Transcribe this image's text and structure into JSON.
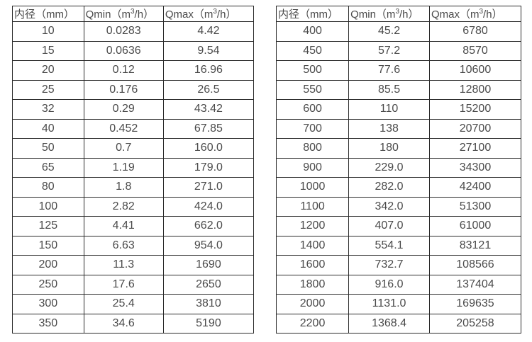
{
  "colors": {
    "background": "#ffffff",
    "border": "#2b2b2b",
    "text": "#4a4a4a"
  },
  "tables": [
    {
      "name": "small-diameters",
      "headers": [
        "内径（mm）",
        "Qmin（m³/h）",
        "Qmax（m³/h）"
      ],
      "rows": [
        [
          "10",
          "0.0283",
          "4.42"
        ],
        [
          "15",
          "0.0636",
          "9.54"
        ],
        [
          "20",
          "0.12",
          "16.96"
        ],
        [
          "25",
          "0.176",
          "26.5"
        ],
        [
          "32",
          "0.29",
          "43.42"
        ],
        [
          "40",
          "0.452",
          "67.85"
        ],
        [
          "50",
          "0.7",
          "160.0"
        ],
        [
          "65",
          "1.19",
          "179.0"
        ],
        [
          "80",
          "1.8",
          "271.0"
        ],
        [
          "100",
          "2.82",
          "424.0"
        ],
        [
          "125",
          "4.41",
          "662.0"
        ],
        [
          "150",
          "6.63",
          "954.0"
        ],
        [
          "200",
          "11.3",
          "1690"
        ],
        [
          "250",
          "17.6",
          "2650"
        ],
        [
          "300",
          "25.4",
          "3810"
        ],
        [
          "350",
          "34.6",
          "5190"
        ]
      ]
    },
    {
      "name": "large-diameters",
      "headers": [
        "内径（mm）",
        "Qmin（m³/h）",
        "Qmax（m³/h）"
      ],
      "rows": [
        [
          "400",
          "45.2",
          "6780"
        ],
        [
          "450",
          "57.2",
          "8570"
        ],
        [
          "500",
          "77.6",
          "10600"
        ],
        [
          "550",
          "85.5",
          "12800"
        ],
        [
          "600",
          "110",
          "15200"
        ],
        [
          "700",
          "138",
          "20700"
        ],
        [
          "800",
          "180",
          "27100"
        ],
        [
          "900",
          "229.0",
          "34300"
        ],
        [
          "1000",
          "282.0",
          "42400"
        ],
        [
          "1100",
          "342.0",
          "51300"
        ],
        [
          "1200",
          "407.0",
          "61000"
        ],
        [
          "1400",
          "554.1",
          "83121"
        ],
        [
          "1600",
          "732.7",
          "108566"
        ],
        [
          "1800",
          "916.0",
          "137404"
        ],
        [
          "2000",
          "1131.0",
          "169635"
        ],
        [
          "2200",
          "1368.4",
          "205258"
        ]
      ]
    }
  ]
}
